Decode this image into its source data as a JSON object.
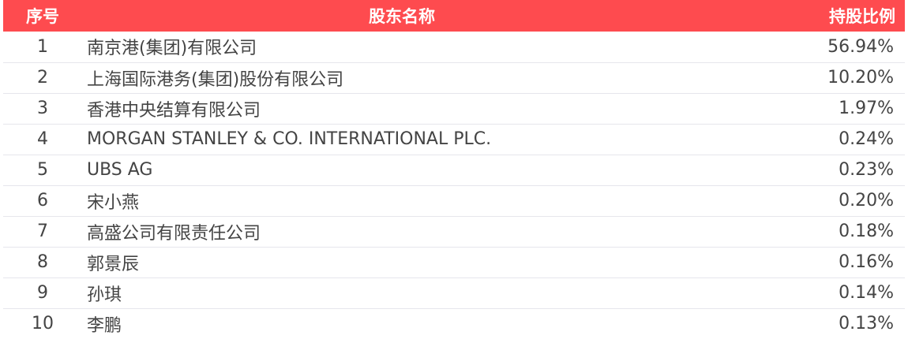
{
  "header": {
    "index": "序号",
    "name": "股东名称",
    "ratio": "持股比例"
  },
  "header_color": "#fe4b4f",
  "rows": [
    {
      "index": "1",
      "name": "南京港(集团)有限公司",
      "ratio": "56.94%"
    },
    {
      "index": "2",
      "name": "上海国际港务(集团)股份有限公司",
      "ratio": "10.20%"
    },
    {
      "index": "3",
      "name": "香港中央结算有限公司",
      "ratio": "1.97%"
    },
    {
      "index": "4",
      "name": "MORGAN STANLEY & CO. INTERNATIONAL PLC.",
      "ratio": "0.24%"
    },
    {
      "index": "5",
      "name": "UBS AG",
      "ratio": "0.23%"
    },
    {
      "index": "6",
      "name": "宋小燕",
      "ratio": "0.20%"
    },
    {
      "index": "7",
      "name": "高盛公司有限责任公司",
      "ratio": "0.18%"
    },
    {
      "index": "8",
      "name": "郭景辰",
      "ratio": "0.16%"
    },
    {
      "index": "9",
      "name": "孙琪",
      "ratio": "0.14%"
    },
    {
      "index": "10",
      "name": "李鹏",
      "ratio": "0.13%"
    }
  ]
}
